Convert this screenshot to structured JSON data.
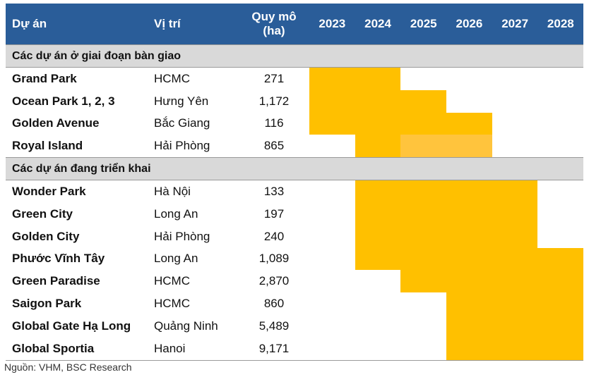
{
  "header": {
    "project": "Dự án",
    "location": "Vị trí",
    "scale_line1": "Quy mô",
    "scale_line2": "(ha)",
    "years": [
      "2023",
      "2024",
      "2025",
      "2026",
      "2027",
      "2028"
    ]
  },
  "sections": [
    {
      "title": "Các dự án ở giai đoạn bàn giao",
      "rows": [
        {
          "name": "Grand Park",
          "location": "HCMC",
          "scale": "271",
          "timeline": [
            {
              "from": "2023",
              "to": "2024"
            }
          ]
        },
        {
          "name": "Ocean Park 1, 2, 3",
          "location": "Hưng Yên",
          "scale": "1,172",
          "timeline": [
            {
              "from": "2023",
              "to": "2025"
            }
          ]
        },
        {
          "name": "Golden Avenue",
          "location": "Bắc Giang",
          "scale": "116",
          "timeline": [
            {
              "from": "2023",
              "to": "2026"
            }
          ]
        },
        {
          "name": "Royal Island",
          "location": "Hải Phòng",
          "scale": "865",
          "timeline": [
            {
              "from": "2024",
              "to": "2024"
            },
            {
              "from": "2025",
              "to": "2026",
              "shade": "light"
            }
          ]
        }
      ]
    },
    {
      "title": "Các dự án đang triển khai",
      "rows": [
        {
          "name": "Wonder Park",
          "location": "Hà Nội",
          "scale": "133",
          "timeline": [
            {
              "from": "2024",
              "to": "2027"
            }
          ]
        },
        {
          "name": "Green City",
          "location": "Long An",
          "scale": "197",
          "timeline": [
            {
              "from": "2024",
              "to": "2027"
            }
          ]
        },
        {
          "name": "Golden City",
          "location": "Hải Phòng",
          "scale": "240",
          "timeline": [
            {
              "from": "2024",
              "to": "2027"
            }
          ]
        },
        {
          "name": "Phước Vĩnh Tây",
          "location": "Long An",
          "scale": "1,089",
          "timeline": [
            {
              "from": "2024",
              "to": "2028"
            }
          ]
        },
        {
          "name": "Green Paradise",
          "location": "HCMC",
          "scale": "2,870",
          "timeline": [
            {
              "from": "2025",
              "to": "2028"
            }
          ]
        },
        {
          "name": "Saigon Park",
          "location": "HCMC",
          "scale": "860",
          "timeline": [
            {
              "from": "2026",
              "to": "2028"
            }
          ]
        },
        {
          "name": "Global Gate Hạ Long",
          "location": "Quảng Ninh",
          "scale": "5,489",
          "timeline": [
            {
              "from": "2026",
              "to": "2028"
            }
          ]
        },
        {
          "name": "Global Sportia",
          "location": "Hanoi",
          "scale": "9,171",
          "timeline": [
            {
              "from": "2026",
              "to": "2028"
            }
          ]
        }
      ]
    }
  ],
  "source": "Nguồn: VHM, BSC Research",
  "colors": {
    "header_bg": "#2a5d99",
    "bar": "#ffc000",
    "bar_light": "#ffc43d",
    "section_bg": "#d9d9d9"
  }
}
